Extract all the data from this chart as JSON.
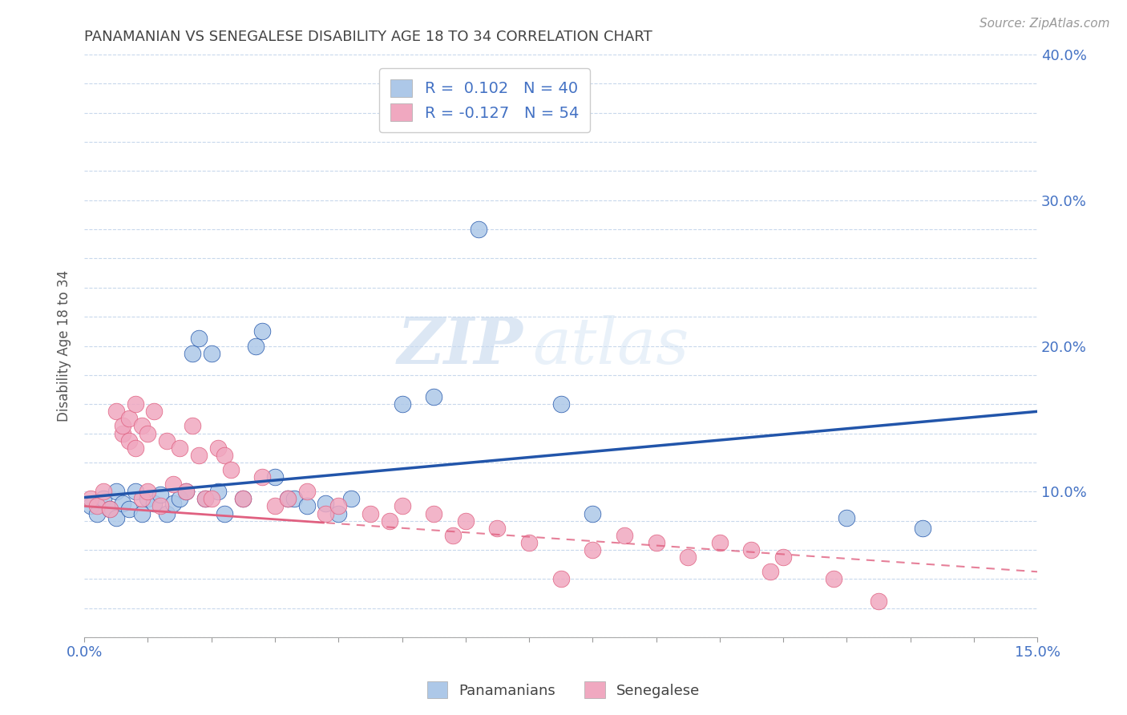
{
  "title": "PANAMANIAN VS SENEGALESE DISABILITY AGE 18 TO 34 CORRELATION CHART",
  "source_text": "Source: ZipAtlas.com",
  "ylabel": "Disability Age 18 to 34",
  "xlim": [
    0.0,
    0.15
  ],
  "ylim": [
    0.0,
    0.4
  ],
  "legend_r1": "R =  0.102",
  "legend_n1": "N = 40",
  "legend_r2": "R = -0.127",
  "legend_n2": "N = 54",
  "panamanian_color": "#adc8e8",
  "senegalese_color": "#f0a8c0",
  "panamanian_line_color": "#2255aa",
  "senegalese_line_color": "#e06080",
  "background_color": "#ffffff",
  "grid_color": "#c8d8ec",
  "watermark_zip": "ZIP",
  "watermark_atlas": "atlas",
  "pan_line_y0": 0.096,
  "pan_line_y1": 0.155,
  "sen_line_y0": 0.09,
  "sen_line_solid_end": 0.038,
  "sen_line_y_solid_end": 0.082,
  "sen_line_y1": 0.045,
  "panamanians_x": [
    0.001,
    0.002,
    0.003,
    0.004,
    0.005,
    0.005,
    0.006,
    0.007,
    0.008,
    0.009,
    0.01,
    0.011,
    0.012,
    0.013,
    0.014,
    0.015,
    0.016,
    0.017,
    0.018,
    0.019,
    0.02,
    0.021,
    0.022,
    0.025,
    0.027,
    0.028,
    0.03,
    0.032,
    0.033,
    0.035,
    0.038,
    0.04,
    0.042,
    0.05,
    0.055,
    0.062,
    0.075,
    0.08,
    0.12,
    0.132
  ],
  "panamanians_y": [
    0.09,
    0.085,
    0.095,
    0.088,
    0.082,
    0.1,
    0.092,
    0.088,
    0.1,
    0.085,
    0.095,
    0.092,
    0.098,
    0.085,
    0.092,
    0.095,
    0.1,
    0.195,
    0.205,
    0.095,
    0.195,
    0.1,
    0.085,
    0.095,
    0.2,
    0.21,
    0.11,
    0.095,
    0.095,
    0.09,
    0.092,
    0.085,
    0.095,
    0.16,
    0.165,
    0.28,
    0.16,
    0.085,
    0.082,
    0.075
  ],
  "senegalese_x": [
    0.001,
    0.002,
    0.003,
    0.004,
    0.005,
    0.006,
    0.006,
    0.007,
    0.007,
    0.008,
    0.008,
    0.009,
    0.009,
    0.01,
    0.01,
    0.011,
    0.012,
    0.013,
    0.014,
    0.015,
    0.016,
    0.017,
    0.018,
    0.019,
    0.02,
    0.021,
    0.022,
    0.023,
    0.025,
    0.028,
    0.03,
    0.032,
    0.035,
    0.038,
    0.04,
    0.045,
    0.048,
    0.05,
    0.055,
    0.058,
    0.06,
    0.065,
    0.07,
    0.075,
    0.08,
    0.085,
    0.09,
    0.095,
    0.1,
    0.105,
    0.108,
    0.11,
    0.118,
    0.125
  ],
  "senegalese_y": [
    0.095,
    0.09,
    0.1,
    0.088,
    0.155,
    0.14,
    0.145,
    0.135,
    0.15,
    0.13,
    0.16,
    0.145,
    0.095,
    0.1,
    0.14,
    0.155,
    0.09,
    0.135,
    0.105,
    0.13,
    0.1,
    0.145,
    0.125,
    0.095,
    0.095,
    0.13,
    0.125,
    0.115,
    0.095,
    0.11,
    0.09,
    0.095,
    0.1,
    0.085,
    0.09,
    0.085,
    0.08,
    0.09,
    0.085,
    0.07,
    0.08,
    0.075,
    0.065,
    0.04,
    0.06,
    0.07,
    0.065,
    0.055,
    0.065,
    0.06,
    0.045,
    0.055,
    0.04,
    0.025
  ]
}
